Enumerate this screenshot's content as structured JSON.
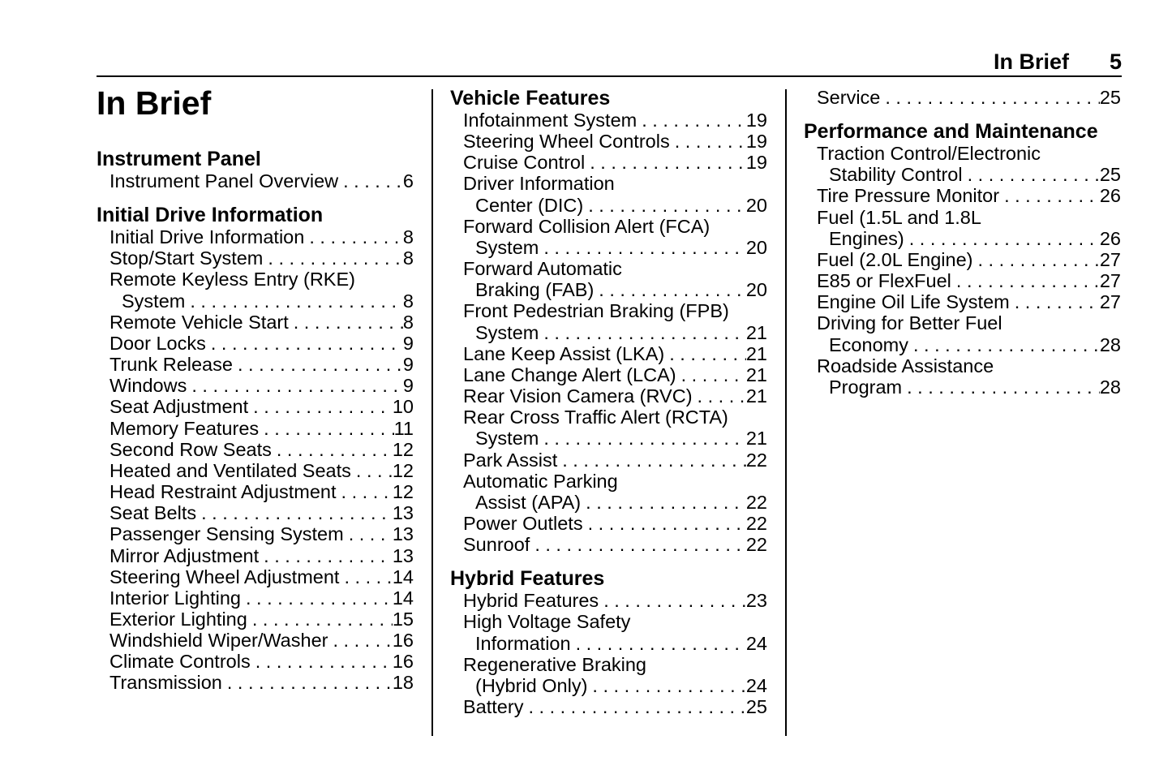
{
  "running_header": {
    "title": "In Brief",
    "page_number": "5"
  },
  "page_title": "In Brief",
  "columns": [
    {
      "sections": [
        {
          "heading": "Instrument Panel",
          "entries": [
            {
              "lines": [
                "Instrument Panel Overview"
              ],
              "page": "6"
            }
          ]
        },
        {
          "heading": "Initial Drive Information",
          "entries": [
            {
              "lines": [
                "Initial Drive Information"
              ],
              "page": "8"
            },
            {
              "lines": [
                "Stop/Start System"
              ],
              "page": "8"
            },
            {
              "lines": [
                "Remote Keyless Entry (RKE)",
                "System"
              ],
              "page": "8"
            },
            {
              "lines": [
                "Remote Vehicle Start"
              ],
              "page": "8"
            },
            {
              "lines": [
                "Door Locks"
              ],
              "page": "9"
            },
            {
              "lines": [
                "Trunk Release"
              ],
              "page": "9"
            },
            {
              "lines": [
                "Windows"
              ],
              "page": "9"
            },
            {
              "lines": [
                "Seat Adjustment"
              ],
              "page": "10"
            },
            {
              "lines": [
                "Memory Features"
              ],
              "page": "11"
            },
            {
              "lines": [
                "Second Row Seats"
              ],
              "page": "12"
            },
            {
              "lines": [
                "Heated and Ventilated Seats"
              ],
              "page": "12"
            },
            {
              "lines": [
                "Head Restraint Adjustment"
              ],
              "page": "12"
            },
            {
              "lines": [
                "Seat Belts"
              ],
              "page": "13"
            },
            {
              "lines": [
                "Passenger Sensing System"
              ],
              "page": "13"
            },
            {
              "lines": [
                "Mirror Adjustment"
              ],
              "page": "13"
            },
            {
              "lines": [
                "Steering Wheel Adjustment"
              ],
              "page": "14"
            },
            {
              "lines": [
                "Interior Lighting"
              ],
              "page": "14"
            },
            {
              "lines": [
                "Exterior Lighting"
              ],
              "page": "15"
            },
            {
              "lines": [
                "Windshield Wiper/Washer"
              ],
              "page": "16"
            },
            {
              "lines": [
                "Climate Controls"
              ],
              "page": "16"
            },
            {
              "lines": [
                "Transmission"
              ],
              "page": "18"
            }
          ]
        }
      ]
    },
    {
      "sections": [
        {
          "heading": "Vehicle Features",
          "entries": [
            {
              "lines": [
                "Infotainment System"
              ],
              "page": "19"
            },
            {
              "lines": [
                "Steering Wheel Controls"
              ],
              "page": "19"
            },
            {
              "lines": [
                "Cruise Control"
              ],
              "page": "19"
            },
            {
              "lines": [
                "Driver Information",
                "Center (DIC)"
              ],
              "page": "20"
            },
            {
              "lines": [
                "Forward Collision Alert (FCA)",
                "System"
              ],
              "page": "20"
            },
            {
              "lines": [
                "Forward Automatic",
                "Braking (FAB)"
              ],
              "page": "20"
            },
            {
              "lines": [
                "Front Pedestrian Braking (FPB)",
                "System"
              ],
              "page": "21"
            },
            {
              "lines": [
                "Lane Keep Assist (LKA)"
              ],
              "page": "21"
            },
            {
              "lines": [
                "Lane Change Alert (LCA)"
              ],
              "page": "21"
            },
            {
              "lines": [
                "Rear Vision Camera (RVC)"
              ],
              "page": "21"
            },
            {
              "lines": [
                "Rear Cross Traffic Alert (RCTA)",
                "System"
              ],
              "page": "21"
            },
            {
              "lines": [
                "Park Assist"
              ],
              "page": "22"
            },
            {
              "lines": [
                "Automatic Parking",
                "Assist (APA)"
              ],
              "page": "22"
            },
            {
              "lines": [
                "Power Outlets"
              ],
              "page": "22"
            },
            {
              "lines": [
                "Sunroof"
              ],
              "page": "22"
            }
          ]
        },
        {
          "heading": "Hybrid Features",
          "entries": [
            {
              "lines": [
                "Hybrid Features"
              ],
              "page": "23"
            },
            {
              "lines": [
                "High Voltage Safety",
                "Information"
              ],
              "page": "24"
            },
            {
              "lines": [
                "Regenerative Braking",
                "(Hybrid Only)"
              ],
              "page": "24"
            },
            {
              "lines": [
                "Battery"
              ],
              "page": "25"
            }
          ]
        }
      ]
    },
    {
      "sections": [
        {
          "heading": "",
          "entries": [
            {
              "lines": [
                "Service"
              ],
              "page": "25"
            }
          ]
        },
        {
          "heading": "Performance and Maintenance",
          "entries": [
            {
              "lines": [
                "Traction Control/Electronic",
                "Stability Control"
              ],
              "page": "25"
            },
            {
              "lines": [
                "Tire Pressure Monitor"
              ],
              "page": "26"
            },
            {
              "lines": [
                "Fuel (1.5L and 1.8L",
                "Engines)"
              ],
              "page": "26"
            },
            {
              "lines": [
                "Fuel (2.0L Engine)"
              ],
              "page": "27"
            },
            {
              "lines": [
                "E85 or FlexFuel"
              ],
              "page": "27"
            },
            {
              "lines": [
                "Engine Oil Life System"
              ],
              "page": "27"
            },
            {
              "lines": [
                "Driving for Better Fuel",
                "Economy"
              ],
              "page": "28"
            },
            {
              "lines": [
                "Roadside Assistance",
                "Program"
              ],
              "page": "28"
            }
          ]
        }
      ]
    }
  ]
}
